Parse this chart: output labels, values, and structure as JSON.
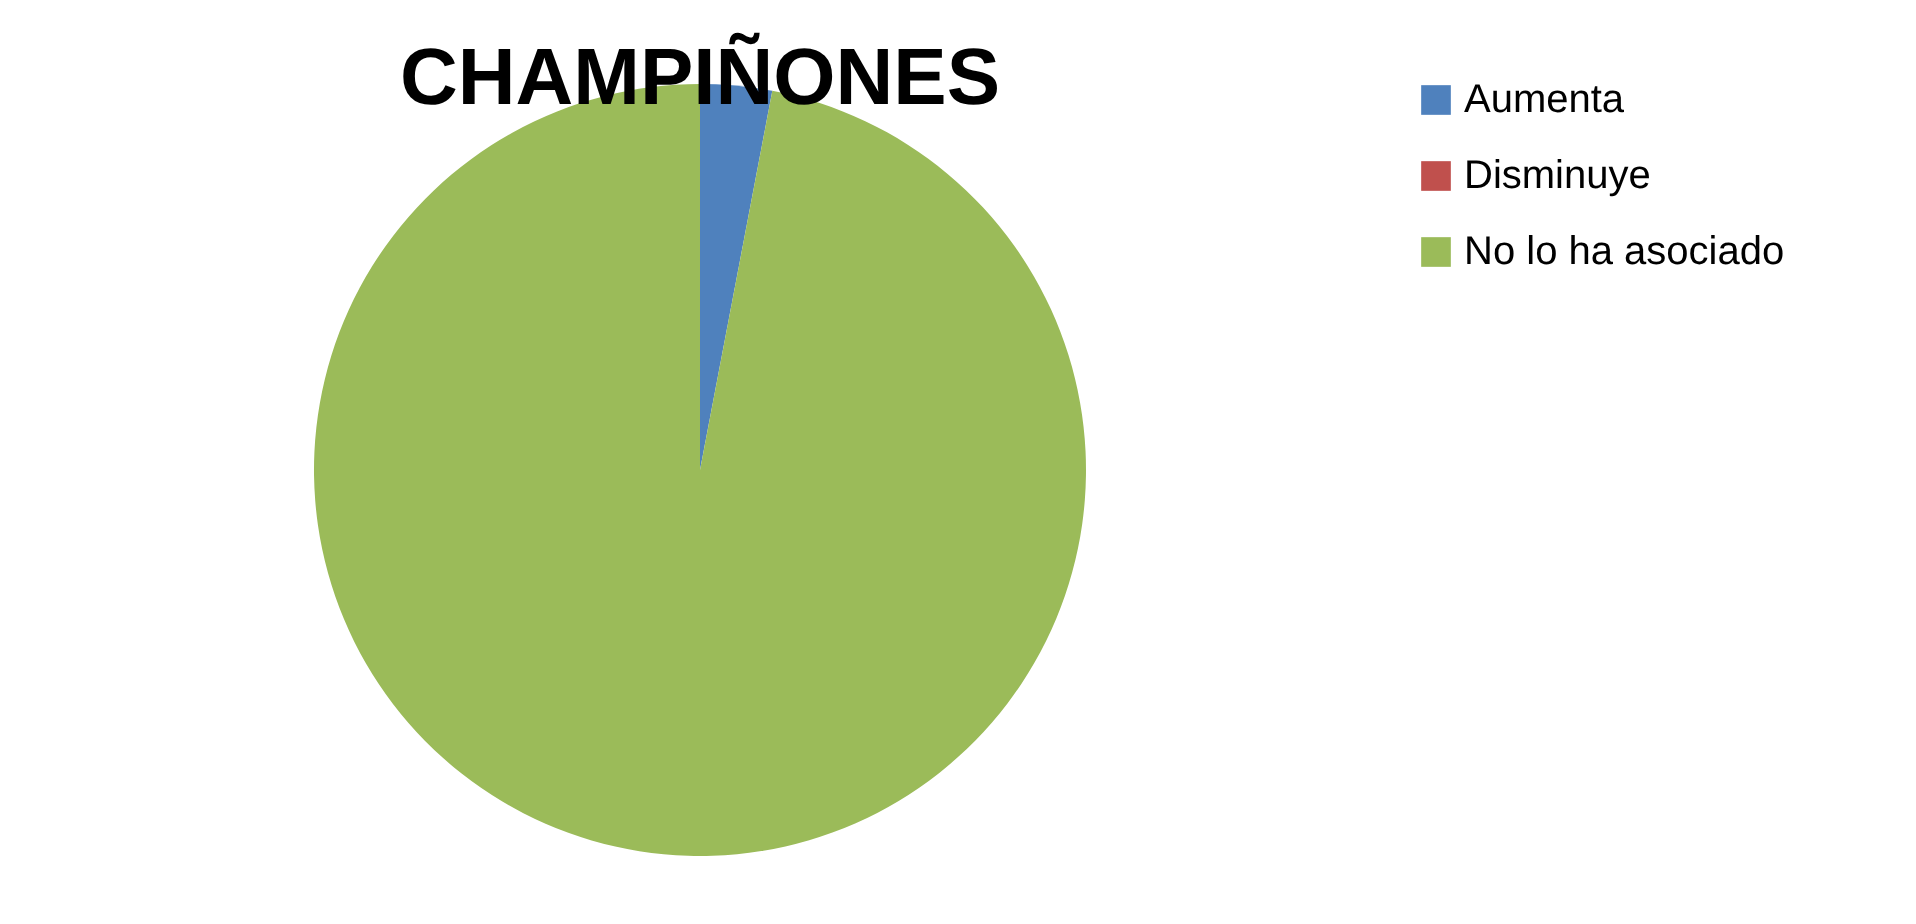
{
  "chart_data": {
    "type": "pie",
    "title": "CHAMPIÑONES",
    "categories": [
      "Aumenta",
      "Disminuye",
      "No lo ha asociado"
    ],
    "values": [
      3,
      0,
      97
    ],
    "colors": [
      "#4f81bd",
      "#c0504d",
      "#9bbb59"
    ],
    "legend": "right"
  }
}
